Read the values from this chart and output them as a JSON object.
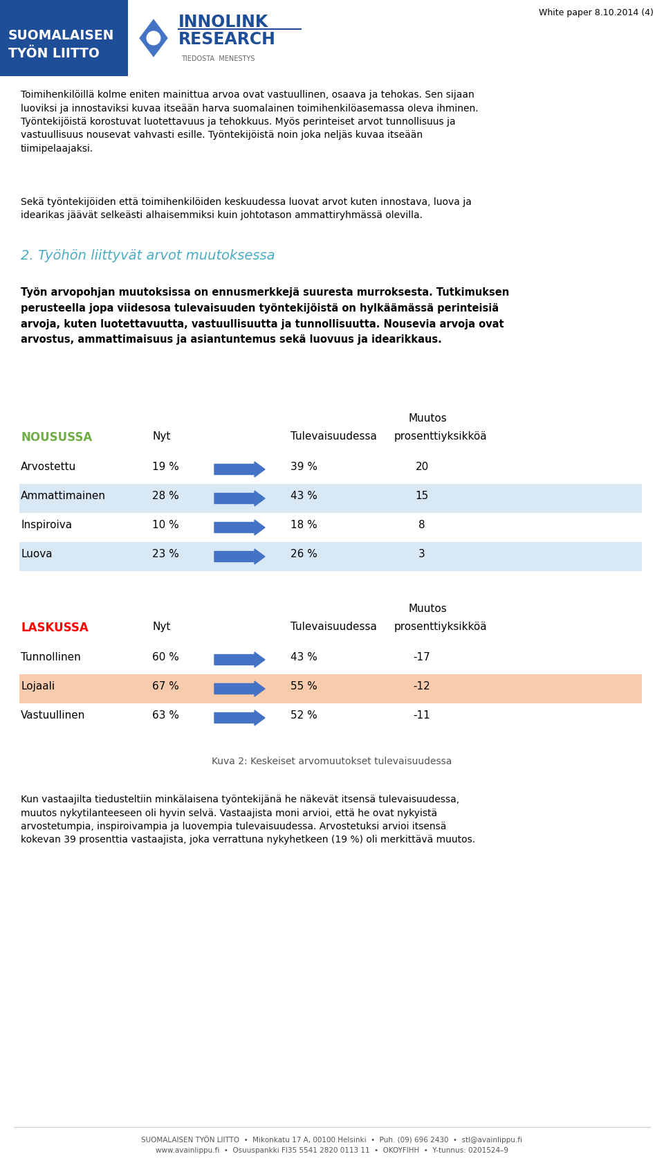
{
  "white_paper_text": "White paper 8.10.2014 (4)",
  "header_blue_bg": "#1f4e99",
  "header_text_line1": "SUOMALAISEN",
  "header_text_line2": "TYÖN LIITTO",
  "tiedosta_text": "TIEDOSTA  MENESTYS",
  "body_text_1": "Toimihenkilöillä kolme eniten mainittua arvoa ovat vastuullinen, osaava ja tehokas. Sen sijaan\nluoviksi ja innostaviksi kuvaa itseään harva suomalainen toimihenkilöasemassa oleva ihminen.\nTyöntekijöistä korostuvat luotettavuus ja tehokkuus. Myös perinteiset arvot tunnollisuus ja\nvastuullisuus nousevat vahvasti esille. Työntekijöistä noin joka neljäs kuvaa itseään\ntiimipelaajaksi.",
  "body_text_2": "Sekä työntekijöiden että toimihenkilöiden keskuudessa luovat arvot kuten innostava, luova ja\nidearikas jäävät selkeästi alhaisemmiksi kuin johtotason ammattiryhmässä olevilla.",
  "section_title": "2. Työhön liittyvät arvot muutoksessa",
  "section_title_color": "#4bacc6",
  "bold_text": "Työn arvopohjan muutoksissa on ennusmerkkejä suuresta murroksesta. Tutkimuksen\nperusteella jopa viidesosa tulevaisuuden työntekijöistä on hylkäämässä perinteisiä\narvoja, kuten luotettavuutta, vastuullisuutta ja tunnollisuutta. Nousevia arvoja ovat\narvostus, ammattimaisuus ja asiantuntemus sekä luovuus ja idearikkaus.",
  "muutos_label": "Muutos",
  "nousussa_label": "NOUSUSSA",
  "nousussa_color": "#70ad47",
  "laskussa_label": "LASKUSSA",
  "laskussa_color": "#ff0000",
  "col_nyt": "Nyt",
  "col_tulevaisuudessa": "Tulevaisuudessa",
  "col_prosenttiyksikkoa": "prosenttiyksikköä",
  "nousussa_rows": [
    {
      "label": "Arvostettu",
      "nyt": "19 %",
      "tulevaisuudessa": "39 %",
      "muutos": "20",
      "highlight": false
    },
    {
      "label": "Ammattimainen",
      "nyt": "28 %",
      "tulevaisuudessa": "43 %",
      "muutos": "15",
      "highlight": true
    },
    {
      "label": "Inspiroiva",
      "nyt": "10 %",
      "tulevaisuudessa": "18 %",
      "muutos": "8",
      "highlight": false
    },
    {
      "label": "Luova",
      "nyt": "23 %",
      "tulevaisuudessa": "26 %",
      "muutos": "3",
      "highlight": true
    }
  ],
  "laskussa_rows": [
    {
      "label": "Tunnollinen",
      "nyt": "60 %",
      "tulevaisuudessa": "43 %",
      "muutos": "-17",
      "highlight": false
    },
    {
      "label": "Lojaali",
      "nyt": "67 %",
      "tulevaisuudessa": "55 %",
      "muutos": "-12",
      "highlight": true,
      "highlight_color": "#f8cbad"
    },
    {
      "label": "Vastuullinen",
      "nyt": "63 %",
      "tulevaisuudessa": "52 %",
      "muutos": "-11",
      "highlight": false
    }
  ],
  "nousussa_highlight_color": "#d9e8f5",
  "caption": "Kuva 2: Keskeiset arvomuutokset tulevaisuudessa",
  "body_text_3": "Kun vastaajilta tiedusteltiin minkälaisena työntekijänä he näkevät itsensä tulevaisuudessa,\nmuutos nykytilanteeseen oli hyvin selvä. Vastaajista moni arvioi, että he ovat nykyistä\narvostetumpia, inspiroivampia ja luovempia tulevaisuudessa. Arvostetuksi arvioi itsensä\nkokevan 39 prosenttia vastaajista, joka verrattuna nykyhetkeen (19 %) oli merkittävä muutos.",
  "footer_text": "SUOMALAISEN TYÖN LIITTO  •  Mikonkatu 17 A, 00100 Helsinki  •  Puh. (09) 696 2430  •  stl@avainlippu.fi\nwww.avainlippu.fi  •  Osuuspankki FI35 5541 2820 0113 11  •  OKOYFIHH  •  Y-tunnus: 0201524–9",
  "arrow_color": "#4472c4",
  "bg_color": "#ffffff"
}
